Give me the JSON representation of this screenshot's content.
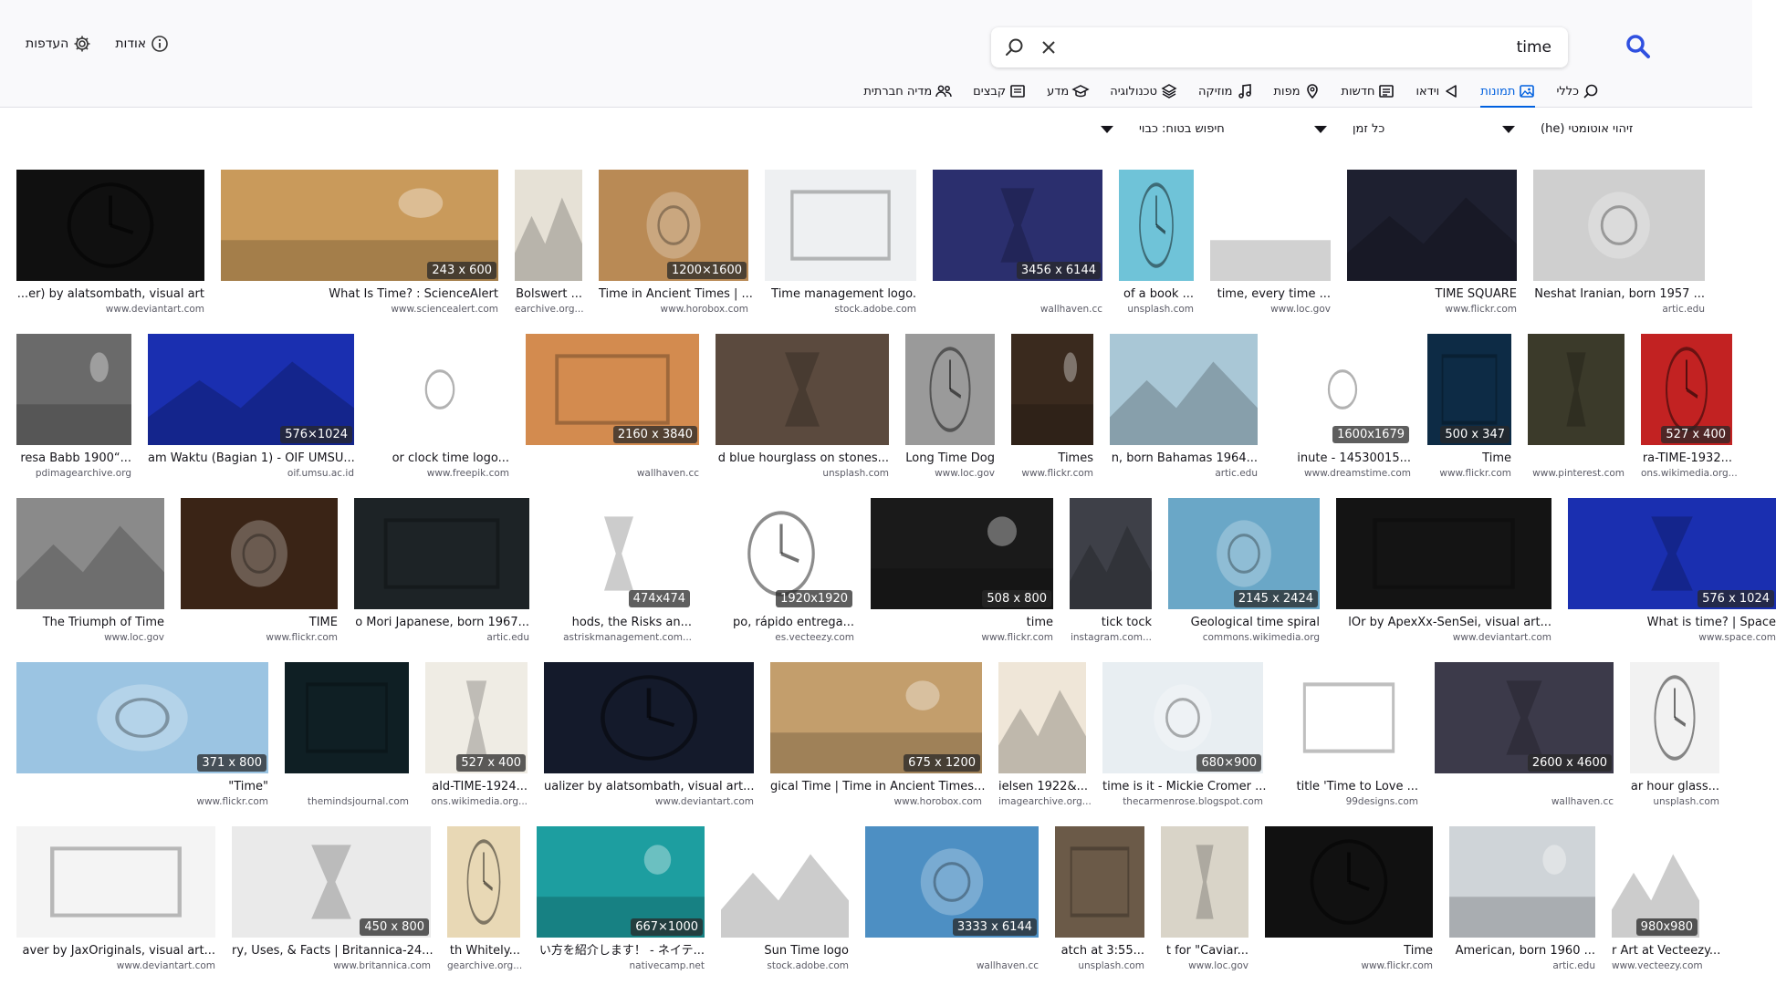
{
  "search": {
    "query": "time"
  },
  "top_links": {
    "about": "אודות",
    "preferences": "העדפות"
  },
  "categories": [
    {
      "label": "כללי",
      "icon": "search-icon"
    },
    {
      "label": "תמונות",
      "icon": "image-icon",
      "active": true
    },
    {
      "label": "וידאו",
      "icon": "play-icon"
    },
    {
      "label": "חדשות",
      "icon": "newspaper-icon"
    },
    {
      "label": "מפות",
      "icon": "map-pin-icon"
    },
    {
      "label": "מוזיקה",
      "icon": "music-icon"
    },
    {
      "label": "טכנולוגיה",
      "icon": "layers-icon"
    },
    {
      "label": "מדע",
      "icon": "graduation-cap-icon"
    },
    {
      "label": "קבצים",
      "icon": "file-icon"
    },
    {
      "label": "מדיה חברתית",
      "icon": "people-icon"
    }
  ],
  "filters": {
    "language": "זיהוי אוטומטי (he)",
    "time": "כל זמן",
    "safe_search": "חיפוש בטוח: כבוי"
  },
  "accent_color": "#0060df",
  "rows": [
    [
      {
        "title": "...er) by alatsombath, visual art",
        "source": "www.deviantart.com",
        "dims": "",
        "bg": "#101010"
      },
      {
        "title": "What Is Time? : ScienceAlert",
        "source": "www.sciencealert.com",
        "dims": "243 x 600",
        "bg": "#c99a5b"
      },
      {
        "title": "Bolswert ...",
        "source": "earchive.org...",
        "dims": "",
        "bg": "#e6e1d6"
      },
      {
        "title": "Time in Ancient Times | ...",
        "source": "www.horobox.com",
        "dims": "1200×1600",
        "bg": "#b98a55"
      },
      {
        "title": "Time management logo.",
        "source": "stock.adobe.com",
        "dims": "",
        "bg": "#eef0f2"
      },
      {
        "title": "",
        "source": "wallhaven.cc",
        "dims": "3456 x 6144",
        "bg": "#2b2f6e"
      },
      {
        "title": "of a book ...",
        "source": "unsplash.com",
        "dims": "",
        "bg": "#6fc3d8"
      },
      {
        "title": "time, every time ...",
        "source": "www.loc.gov",
        "dims": "",
        "bg": "#ffffff"
      },
      {
        "title": "TIME SQUARE",
        "source": "www.flickr.com",
        "dims": "",
        "bg": "#1e2030"
      },
      {
        "title": "Neshat Iranian, born 1957 ...",
        "source": "artic.edu",
        "dims": "",
        "bg": "#cfcfcf"
      }
    ],
    [
      {
        "title": "resa Babb 1900“...",
        "source": "pdimagearchive.org",
        "dims": "",
        "bg": "#6a6a6a"
      },
      {
        "title": "am Waktu (Bagian 1) - OIF UMSU...",
        "source": "oif.umsu.ac.id",
        "dims": "576×1024",
        "bg": "#1a2fb0"
      },
      {
        "title": "or clock time logo...",
        "source": "www.freepik.com",
        "dims": "",
        "bg": "#ffffff"
      },
      {
        "title": "",
        "source": "wallhaven.cc",
        "dims": "2160 x 3840",
        "bg": "#d38b4f"
      },
      {
        "title": "d blue hourglass on stones...",
        "source": "unsplash.com",
        "dims": "",
        "bg": "#5b4a3e"
      },
      {
        "title": "Long Time Dog",
        "source": "www.loc.gov",
        "dims": "",
        "bg": "#9a9a9a"
      },
      {
        "title": "Times",
        "source": "www.flickr.com",
        "dims": "",
        "bg": "#3a2a1e"
      },
      {
        "title": "n, born Bahamas 1964...",
        "source": "artic.edu",
        "dims": "",
        "bg": "#a9c7d6"
      },
      {
        "title": "inute - 14530015...",
        "source": "www.dreamstime.com",
        "dims": "1600x1679",
        "bg": "#ffffff"
      },
      {
        "title": "Time",
        "source": "www.flickr.com",
        "dims": "500 x 347",
        "bg": "#0d2b45"
      },
      {
        "title": "",
        "source": "www.pinterest.com",
        "dims": "",
        "bg": "#3b3a2a"
      },
      {
        "title": "ra-TIME-1932...",
        "source": "ons.wikimedia.org...",
        "dims": "527 x 400",
        "bg": "#c22222"
      }
    ],
    [
      {
        "title": "The Triumph of Time",
        "source": "www.loc.gov",
        "dims": "",
        "bg": "#8a8a8a"
      },
      {
        "title": "TIME",
        "source": "www.flickr.com",
        "dims": "",
        "bg": "#3a2416"
      },
      {
        "title": "o Mori Japanese, born 1967...",
        "source": "artic.edu",
        "dims": "",
        "bg": "#1d2326"
      },
      {
        "title": "hods, the Risks an...",
        "source": "astriskmanagement.com...",
        "dims": "474x474",
        "bg": "#ffffff"
      },
      {
        "title": "po, rápido entrega...",
        "source": "es.vecteezy.com",
        "dims": "1920x1920",
        "bg": "#ffffff"
      },
      {
        "title": "time",
        "source": "www.flickr.com",
        "dims": "508 x 800",
        "bg": "#1a1a1a"
      },
      {
        "title": "tick tock",
        "source": "instagram.com...",
        "dims": "",
        "bg": "#3e4048"
      },
      {
        "title": "Geological time spiral",
        "source": "commons.wikimedia.org",
        "dims": "2145 x 2424",
        "bg": "#6aa7c7"
      },
      {
        "title": "lOr by ApexXx-SenSei, visual art...",
        "source": "www.deviantart.com",
        "dims": "",
        "bg": "#141414"
      },
      {
        "title": "What is time? | Space",
        "source": "www.space.com",
        "dims": "576 x 1024",
        "bg": "#1a2fb0"
      }
    ],
    [
      {
        "title": "\"Time\"",
        "source": "www.flickr.com",
        "dims": "371 x 800",
        "bg": "#9bc4e2"
      },
      {
        "title": "",
        "source": "themindsjournal.com",
        "dims": "",
        "bg": "#0f1f24"
      },
      {
        "title": "ald-TIME-1924...",
        "source": "ons.wikimedia.org...",
        "dims": "527 x 400",
        "bg": "#efece4"
      },
      {
        "title": "ualizer by alatsombath, visual art...",
        "source": "www.deviantart.com",
        "dims": "",
        "bg": "#141a2b"
      },
      {
        "title": "gical Time | Time in Ancient Times...",
        "source": "www.horobox.com",
        "dims": "675 x 1200",
        "bg": "#c39e6c"
      },
      {
        "title": "ielsen 1922&...",
        "source": "imagearchive.org...",
        "dims": "",
        "bg": "#efe6d8"
      },
      {
        "title": "time is it - Mickie Cromer ...",
        "source": "thecarmenrose.blogspot.com",
        "dims": "680×900",
        "bg": "#e8eef2"
      },
      {
        "title": "title 'Time to Love ...",
        "source": "99designs.com",
        "dims": "",
        "bg": "#ffffff"
      },
      {
        "title": "",
        "source": "wallhaven.cc",
        "dims": "2600 x 4600",
        "bg": "#3c3a4a"
      },
      {
        "title": "ar hour glass...",
        "source": "unsplash.com",
        "dims": "",
        "bg": "#f2f2f2"
      }
    ],
    [
      {
        "title": "aver by JaxOriginals, visual art...",
        "source": "www.deviantart.com",
        "dims": "",
        "bg": "#f4f4f4"
      },
      {
        "title": "ry, Uses, & Facts | Britannica-24...",
        "source": "www.britannica.com",
        "dims": "450 x 800",
        "bg": "#eaeaea"
      },
      {
        "title": "th Whitely...",
        "source": "gearchive.org...",
        "dims": "",
        "bg": "#e8d8b5"
      },
      {
        "title": "い方を紹介します！ - ネイテ...",
        "source": "nativecamp.net",
        "dims": "667×1000",
        "bg": "#1d9ea0"
      },
      {
        "title": "Sun Time logo",
        "source": "stock.adobe.com",
        "dims": "",
        "bg": "#ffffff"
      },
      {
        "title": "",
        "source": "wallhaven.cc",
        "dims": "3333 x 6144",
        "bg": "#4d8fc3"
      },
      {
        "title": "atch at 3:55...",
        "source": "unsplash.com",
        "dims": "",
        "bg": "#6b5a48"
      },
      {
        "title": "t for \"Caviar...",
        "source": "www.loc.gov",
        "dims": "",
        "bg": "#d9d4c8"
      },
      {
        "title": "Time",
        "source": "www.flickr.com",
        "dims": "",
        "bg": "#111111"
      },
      {
        "title": "American, born 1960 ...",
        "source": "artic.edu",
        "dims": "",
        "bg": "#cfd4d8"
      },
      {
        "title": "r Art at Vecteezy...",
        "source": "www.vecteezy.com",
        "dims": "980x980",
        "bg": "#ffffff"
      }
    ]
  ]
}
